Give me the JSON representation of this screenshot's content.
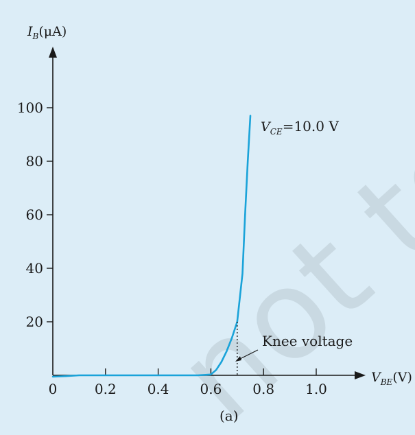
{
  "colors": {
    "background": "#dcedf7",
    "curve": "#1aa3d9",
    "axis": "#1a1a1a",
    "watermark": "#c9d9e2"
  },
  "watermark": {
    "text": "not to be"
  },
  "chart_data": {
    "type": "line",
    "x_axis": {
      "symbol": "V",
      "subscript": "BE",
      "unit": "(V)",
      "range": [
        0,
        1.2
      ],
      "ticks": [
        0,
        0.2,
        0.4,
        0.6,
        0.8,
        1.0
      ],
      "tick_labels": [
        "0",
        "0.2",
        "0.4",
        "0.6",
        "0.8",
        "1.0"
      ]
    },
    "y_axis": {
      "symbol": "I",
      "subscript": "B",
      "unit": "(μA)",
      "range": [
        0,
        120
      ],
      "ticks": [
        20,
        40,
        60,
        80,
        100
      ],
      "tick_labels": [
        "20",
        "40",
        "60",
        "80",
        "100"
      ]
    },
    "grid": false,
    "series": [
      {
        "name": "V_CE = 10.0 V",
        "x": [
          0,
          0.05,
          0.1,
          0.2,
          0.3,
          0.4,
          0.5,
          0.55,
          0.6,
          0.62,
          0.64,
          0.66,
          0.68,
          0.7,
          0.72,
          0.73,
          0.74,
          0.75
        ],
        "y": [
          -0.5,
          -0.3,
          0,
          0,
          0,
          0,
          0,
          0,
          0.3,
          2,
          5,
          9,
          14,
          20,
          38,
          60,
          80,
          97
        ]
      }
    ],
    "annotations": {
      "series_label_main": "V",
      "series_label_sub": "CE",
      "series_label_rest": "=10.0 V",
      "knee_label": "Knee voltage",
      "knee_x": 0.7,
      "knee_y": 20
    },
    "caption": "(a)"
  }
}
